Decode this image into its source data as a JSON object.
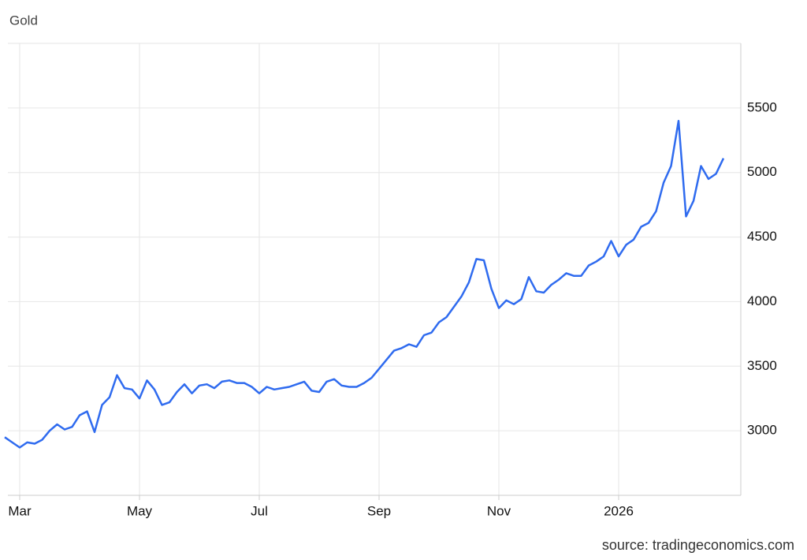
{
  "chart_data": {
    "type": "line",
    "title": "Gold",
    "source": "source: tradingeconomics.com",
    "categories": [
      null,
      null,
      "Mar",
      null,
      null,
      null,
      null,
      null,
      null,
      null,
      null,
      null,
      null,
      null,
      null,
      null,
      null,
      null,
      "May",
      null,
      null,
      null,
      null,
      null,
      null,
      null,
      null,
      null,
      null,
      null,
      null,
      null,
      null,
      null,
      "Jul",
      null,
      null,
      null,
      null,
      null,
      null,
      null,
      null,
      null,
      null,
      null,
      null,
      null,
      null,
      null,
      "Sep",
      null,
      null,
      null,
      null,
      null,
      null,
      null,
      null,
      null,
      null,
      null,
      null,
      null,
      null,
      null,
      "Nov",
      null,
      null,
      null,
      null,
      null,
      null,
      null,
      null,
      null,
      null,
      null,
      null,
      null,
      null,
      null,
      "2026",
      null,
      null,
      null,
      null,
      null,
      null,
      null,
      null,
      null,
      null,
      null,
      null,
      null,
      null
    ],
    "series": [
      {
        "name": "Gold",
        "color": "#2f6bef",
        "values": [
          2950,
          2910,
          2870,
          2910,
          2900,
          2930,
          3000,
          3050,
          3010,
          3030,
          3120,
          3150,
          2990,
          3200,
          3260,
          3430,
          3330,
          3320,
          3250,
          3390,
          3320,
          3200,
          3220,
          3300,
          3360,
          3290,
          3350,
          3360,
          3330,
          3380,
          3390,
          3370,
          3370,
          3340,
          3290,
          3340,
          3320,
          3330,
          3340,
          3360,
          3380,
          3310,
          3300,
          3380,
          3400,
          3350,
          3340,
          3340,
          3370,
          3410,
          3480,
          3550,
          3620,
          3640,
          3670,
          3650,
          3740,
          3760,
          3840,
          3880,
          3960,
          4040,
          4150,
          4330,
          4320,
          4100,
          3950,
          4010,
          3980,
          4020,
          4190,
          4080,
          4070,
          4130,
          4170,
          4220,
          4200,
          4200,
          4280,
          4310,
          4350,
          4470,
          4350,
          4440,
          4480,
          4580,
          4610,
          4700,
          4920,
          5050,
          5400,
          4660,
          4780,
          5050,
          4950,
          4990,
          5110
        ]
      }
    ],
    "ylim": [
      2500,
      6000
    ],
    "yticks": [
      3000,
      3500,
      4000,
      4500,
      5000,
      5500
    ],
    "grid": true
  }
}
